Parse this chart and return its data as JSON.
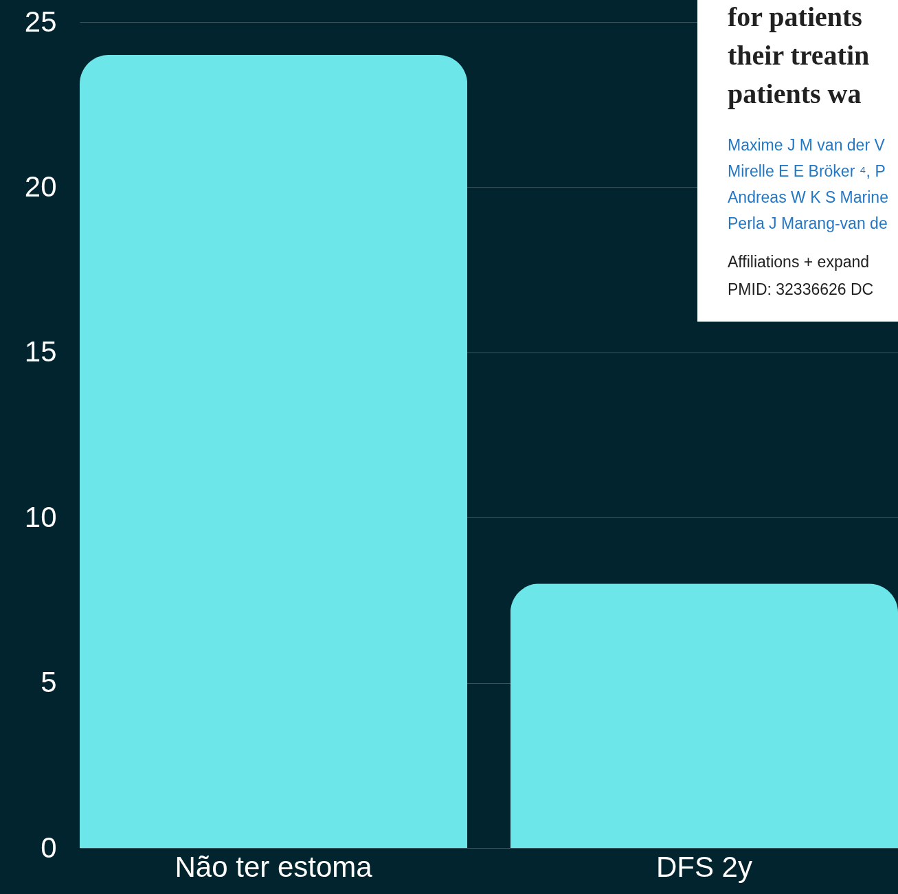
{
  "chart_data": {
    "type": "bar",
    "categories": [
      "Não ter estoma",
      "DFS 2y"
    ],
    "values": [
      24,
      8
    ],
    "color": "#6ce6e8",
    "ylim": [
      0,
      25
    ],
    "yticks": [
      0,
      5,
      10,
      15,
      20,
      25
    ],
    "grid": "y",
    "annotations": [
      "for patients",
      "their treatin",
      "patients wa",
      "Maxime J M van der V",
      "Mirelle E E Bröker ⁴, P",
      "Andreas W K S Marine",
      "Perla J Marang-van de",
      "Affiliations  + expand",
      "PMID: 32336626   DC"
    ]
  }
}
